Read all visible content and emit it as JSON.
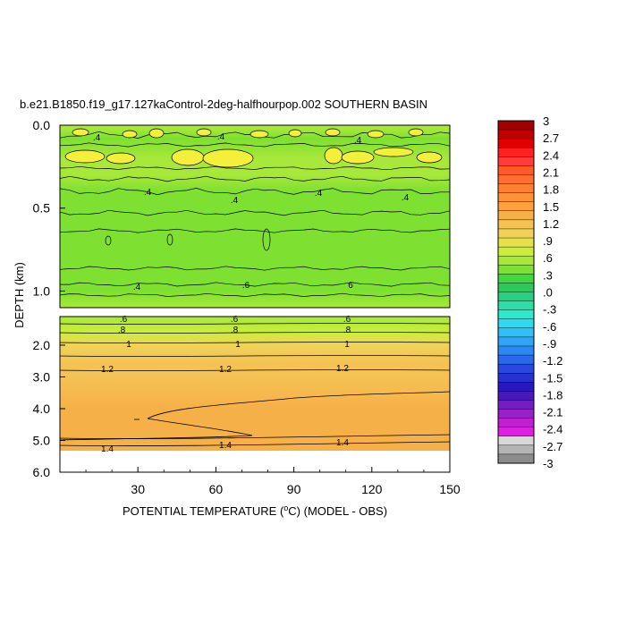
{
  "chart_data": {
    "type": "heatmap",
    "title": "b.e21.B1850.f19_g17.127kaControl-2deg-halfhourpop.002 SOUTHERN BASIN",
    "xlabel": "POTENTIAL TEMPERATURE (°C) (MODEL - OBS)",
    "ylabel": "DEPTH (km)",
    "xlim": [
      0,
      150
    ],
    "x_ticks": [
      "30",
      "60",
      "90",
      "120",
      "150"
    ],
    "upper_panel": {
      "ylim": [
        0.0,
        1.1
      ],
      "y_ticks": [
        "0.0",
        "0.5",
        "1.0"
      ],
      "contour_labels": [
        ".4",
        ".4",
        ".4",
        ".4",
        ".4",
        ".4",
        ".4",
        ".4",
        ".6",
        "6"
      ],
      "field_profile": [
        {
          "depth": 0.02,
          "value": 0.5
        },
        {
          "depth": 0.08,
          "value": 0.45
        },
        {
          "depth": 0.2,
          "value": 0.62
        },
        {
          "depth": 0.3,
          "value": 0.52
        },
        {
          "depth": 0.4,
          "value": 0.45
        },
        {
          "depth": 0.5,
          "value": 0.4
        },
        {
          "depth": 0.6,
          "value": 0.36
        },
        {
          "depth": 0.75,
          "value": 0.33
        },
        {
          "depth": 0.9,
          "value": 0.36
        },
        {
          "depth": 1.0,
          "value": 0.42
        },
        {
          "depth": 1.1,
          "value": 0.48
        }
      ]
    },
    "lower_panel": {
      "ylim": [
        1.1,
        6.0
      ],
      "y_ticks": [
        "2.0",
        "3.0",
        "4.0",
        "5.0",
        "6.0"
      ],
      "contour_labels": [
        ".6",
        ".6",
        ".6",
        ".8",
        ".8",
        ".8",
        "1",
        "1",
        "1",
        "1.2",
        "1.2",
        "1.2",
        "1.4",
        "1.4",
        "1.4"
      ],
      "data_extent_bottom": 5.4,
      "field_profile": [
        {
          "depth": 1.1,
          "value": 0.55
        },
        {
          "depth": 1.6,
          "value": 0.7
        },
        {
          "depth": 2.0,
          "value": 0.95
        },
        {
          "depth": 2.6,
          "value": 1.12
        },
        {
          "depth": 3.0,
          "value": 1.22
        },
        {
          "depth": 4.0,
          "value": 1.3
        },
        {
          "depth": 5.0,
          "value": 1.36
        },
        {
          "depth": 5.4,
          "value": 1.42
        }
      ]
    },
    "colorbar": {
      "labels": [
        "3",
        "2.7",
        "2.4",
        "2.1",
        "1.8",
        "1.5",
        "1.2",
        ".9",
        ".6",
        ".3",
        ".0",
        "-.3",
        "-.6",
        "-.9",
        "-1.2",
        "-1.5",
        "-1.8",
        "-2.1",
        "-2.4",
        "-2.7",
        "-3"
      ],
      "min": -3,
      "max": 3,
      "colors": [
        "#a00000",
        "#c00000",
        "#e00000",
        "#ff2020",
        "#ff3c3c",
        "#ff5a28",
        "#ff6e2e",
        "#ff8030",
        "#ff9234",
        "#ffa040",
        "#f6b048",
        "#f5c253",
        "#f0d25a",
        "#e6e04a",
        "#ccee3a",
        "#a8e83a",
        "#7ee030",
        "#44d640",
        "#2cc858",
        "#28d080",
        "#30dca8",
        "#30e8cc",
        "#30d8f0",
        "#30c0f8",
        "#30a4f8",
        "#2e88f4",
        "#2c68ec",
        "#2a48e0",
        "#2830d0",
        "#2818c0",
        "#4818b8",
        "#7020c0",
        "#9a20c8",
        "#c020d0",
        "#e020e0",
        "#d8d8d8",
        "#b4b4b4",
        "#8c8c8c"
      ]
    }
  }
}
